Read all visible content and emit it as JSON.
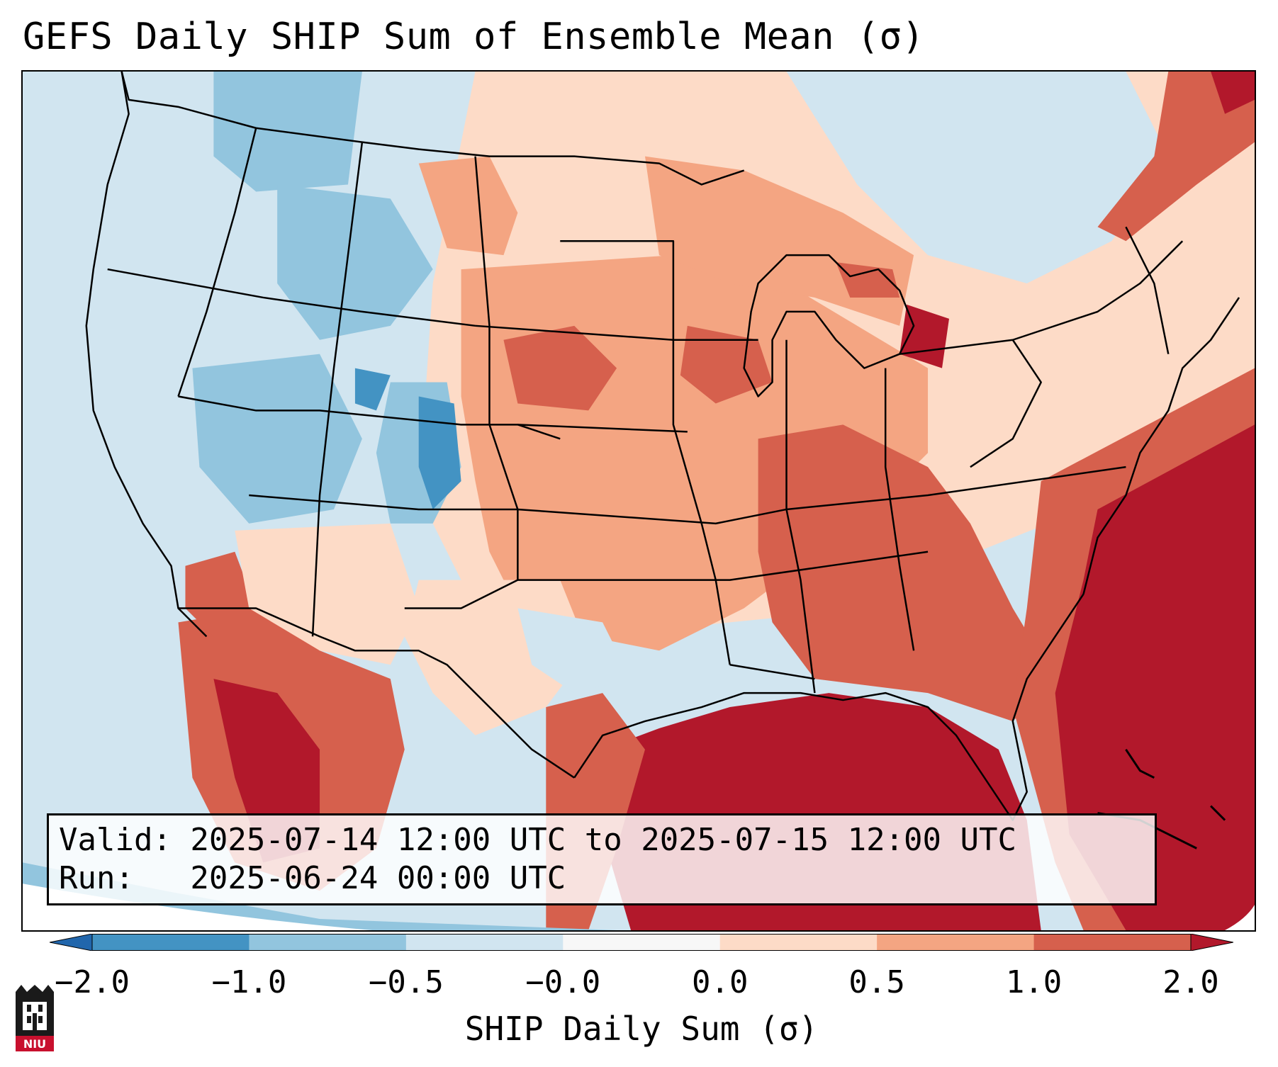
{
  "title": "GEFS Daily SHIP Sum of Ensemble Mean (σ)",
  "info_box": {
    "valid_line": "Valid: 2025-07-14 12:00 UTC to 2025-07-15 12:00 UTC",
    "run_line": "Run:   2025-06-24 00:00 UTC"
  },
  "colorbar": {
    "label": "SHIP Daily Sum (σ)",
    "ticks": [
      "−2.0",
      "−1.0",
      "−0.5",
      "−0.0",
      "0.0",
      "0.5",
      "1.0",
      "2.0"
    ],
    "bins": [
      {
        "color": "#2166ac"
      },
      {
        "color": "#4393c3"
      },
      {
        "color": "#92c5de"
      },
      {
        "color": "#d1e5f0"
      },
      {
        "color": "#f7f7f7"
      },
      {
        "color": "#fddbc7"
      },
      {
        "color": "#f4a582"
      },
      {
        "color": "#d6604d"
      },
      {
        "color": "#b2182b"
      }
    ],
    "extend": "both"
  },
  "map": {
    "projection": "Lambert conformal, CONUS",
    "region": "Contiguous United States, southern Canada, northern Mexico, Gulf of Mexico",
    "features": [
      "state boundaries",
      "coastlines",
      "country borders"
    ]
  },
  "logo": {
    "text": "NIU",
    "accent_color": "#c8102e"
  }
}
